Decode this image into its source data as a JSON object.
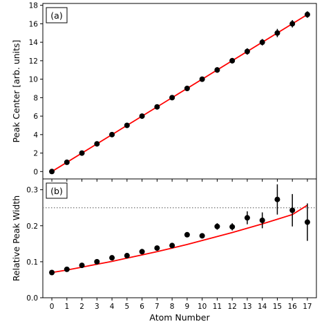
{
  "chart_data": [
    {
      "type": "scatter",
      "panel": "(a)",
      "ylabel": "Peak Center [arb. units]",
      "xlabel": "",
      "xlim": [
        -0.6,
        17.6
      ],
      "ylim": [
        -0.8,
        18.2
      ],
      "yticks": [
        0,
        2,
        4,
        6,
        8,
        10,
        12,
        14,
        16,
        18
      ],
      "x": [
        0,
        1,
        2,
        3,
        4,
        5,
        6,
        7,
        8,
        9,
        10,
        11,
        12,
        13,
        14,
        15,
        16,
        17
      ],
      "y": [
        0,
        1,
        2,
        3,
        4,
        5,
        6,
        7,
        8,
        9,
        10,
        11,
        12,
        13,
        14,
        15,
        16,
        17
      ],
      "yerr": [
        0.05,
        0.05,
        0.05,
        0.06,
        0.07,
        0.08,
        0.09,
        0.1,
        0.12,
        0.2,
        0.2,
        0.3,
        0.3,
        0.35,
        0.35,
        0.45,
        0.4,
        0.35
      ],
      "fit": {
        "x": [
          0,
          17
        ],
        "y": [
          0,
          17
        ],
        "color": "#ff0000"
      },
      "marker_color": "#000000",
      "grid": false
    },
    {
      "type": "scatter",
      "panel": "(b)",
      "ylabel": "Relative Peak Width",
      "xlabel": "Atom Number",
      "xlim": [
        -0.6,
        17.6
      ],
      "ylim": [
        0.0,
        0.33
      ],
      "yticks": [
        0.0,
        0.1,
        0.2,
        0.3
      ],
      "ytick_labels": [
        "0.0",
        "0.1",
        "0.2",
        "0.3"
      ],
      "xticks": [
        0,
        1,
        2,
        3,
        4,
        5,
        6,
        7,
        8,
        9,
        10,
        11,
        12,
        13,
        14,
        15,
        16,
        17
      ],
      "x": [
        0,
        1,
        2,
        3,
        4,
        5,
        6,
        7,
        8,
        9,
        10,
        11,
        12,
        13,
        14,
        15,
        16,
        17
      ],
      "y": [
        0.07,
        0.079,
        0.09,
        0.1,
        0.111,
        0.117,
        0.128,
        0.138,
        0.145,
        0.175,
        0.172,
        0.198,
        0.197,
        0.222,
        0.215,
        0.273,
        0.243,
        0.21
      ],
      "yerr": [
        0.004,
        0.004,
        0.004,
        0.004,
        0.005,
        0.005,
        0.005,
        0.005,
        0.005,
        0.005,
        0.006,
        0.009,
        0.01,
        0.018,
        0.022,
        0.042,
        0.045,
        0.052
      ],
      "fit": {
        "x": [
          0,
          1,
          2,
          3,
          4,
          5,
          6,
          7,
          8,
          9,
          10,
          11,
          12,
          13,
          14,
          15,
          16,
          17
        ],
        "y": [
          0.07,
          0.077,
          0.085,
          0.093,
          0.101,
          0.11,
          0.119,
          0.128,
          0.138,
          0.148,
          0.159,
          0.17,
          0.181,
          0.193,
          0.205,
          0.218,
          0.231,
          0.257
        ],
        "color": "#ff0000"
      },
      "hline": {
        "y": 0.25,
        "style": "dotted",
        "color": "#808080"
      },
      "marker_color": "#000000",
      "grid": false
    }
  ]
}
